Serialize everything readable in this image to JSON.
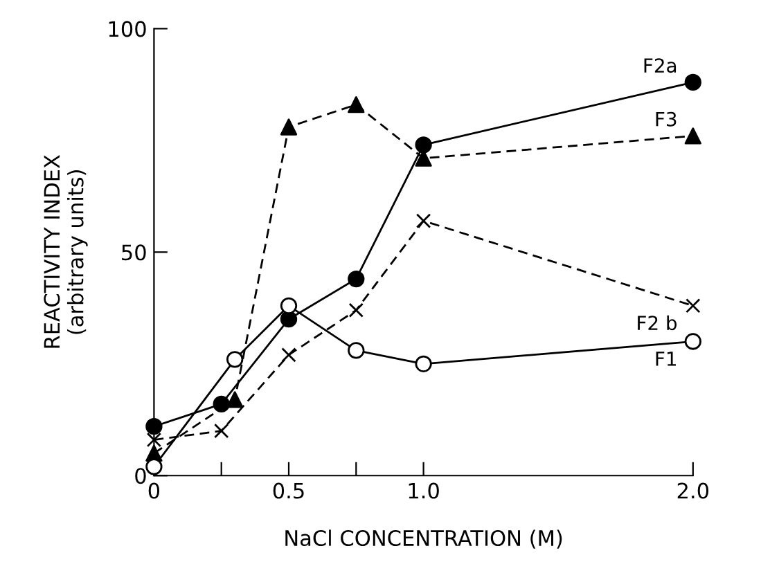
{
  "chart_data": {
    "type": "line",
    "xlabel": "NaCl CONCENTRATION (M)",
    "ylabel": "REACTIVITY INDEX\n(arbitrary units)",
    "xlim": [
      0,
      2.0
    ],
    "ylim": [
      0,
      100
    ],
    "xticks": [
      0,
      {
        "value": 0.25,
        "label": null
      },
      0.5,
      {
        "value": 0.75,
        "label": null
      },
      {
        "value": 1.0,
        "label": "1.0"
      },
      {
        "value": 2.0,
        "label": "2.0"
      }
    ],
    "yticks": [
      0,
      50,
      100
    ],
    "grid": false,
    "legend": false,
    "series": [
      {
        "name": "F2a",
        "color": "#000000",
        "marker": "circle",
        "line_style": "solid",
        "x": [
          0,
          0.25,
          0.5,
          0.75,
          1.0,
          2.0
        ],
        "values": [
          11,
          16,
          35,
          44,
          74,
          88
        ]
      },
      {
        "name": "F3",
        "color": "#000000",
        "marker": "triangle",
        "line_style": "dashed",
        "x": [
          0,
          0.3,
          0.5,
          0.75,
          1.0,
          2.0
        ],
        "values": [
          5,
          17,
          78,
          83,
          71,
          76
        ]
      },
      {
        "name": "F2 b",
        "color": "#000000",
        "marker": "cross",
        "line_style": "dashed",
        "x": [
          0,
          0.25,
          0.5,
          0.75,
          1.0,
          2.0
        ],
        "values": [
          8,
          10,
          27,
          37,
          57,
          38
        ]
      },
      {
        "name": "F1",
        "color": "#000000",
        "colors": [
          "#ffffff",
          "#ffffff",
          "#ffffff",
          "#ffffff",
          "#ffffff",
          "#ffffff"
        ],
        "marker": "circle",
        "line_style": "solid",
        "x": [
          0,
          0.3,
          0.5,
          0.75,
          1.0,
          2.0
        ],
        "values": [
          2,
          26,
          38,
          28,
          25,
          30
        ]
      }
    ]
  }
}
